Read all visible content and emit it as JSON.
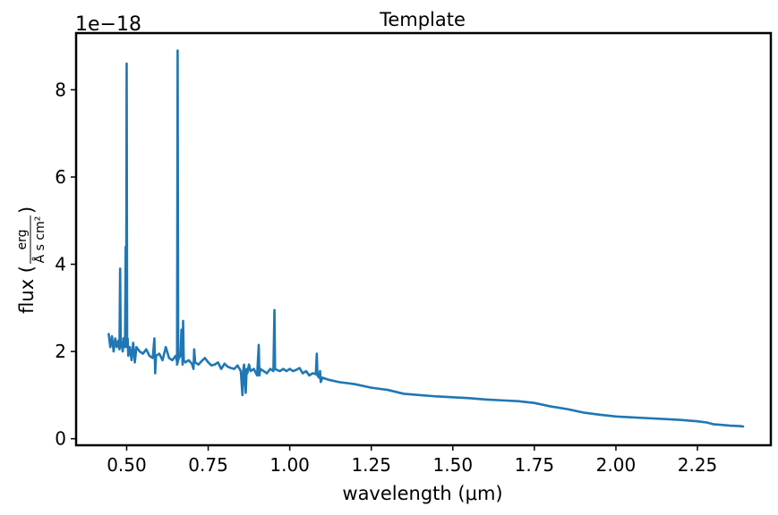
{
  "chart_data": {
    "type": "line",
    "title": "Template",
    "xlabel": "wavelength (μm)",
    "ylabel": {
      "prefix": "flux (",
      "num": "erg",
      "den": "Å s cm²",
      "suffix": ")"
    },
    "y_offset_label": "1e−18",
    "xlim": [
      0.345,
      2.475
    ],
    "ylim": [
      -0.15,
      9.3
    ],
    "xticks": [
      0.5,
      0.75,
      1.0,
      1.25,
      1.5,
      1.75,
      2.0,
      2.25
    ],
    "xtick_labels": [
      "0.50",
      "0.75",
      "1.00",
      "1.25",
      "1.50",
      "1.75",
      "2.00",
      "2.25"
    ],
    "yticks": [
      0,
      2,
      4,
      6,
      8
    ],
    "ytick_labels": [
      "0",
      "2",
      "4",
      "6",
      "8"
    ],
    "grid": false,
    "series": [
      {
        "color": "#1f77b4",
        "x": [
          0.445,
          0.45,
          0.455,
          0.46,
          0.465,
          0.47,
          0.475,
          0.478,
          0.48,
          0.482,
          0.485,
          0.488,
          0.49,
          0.495,
          0.497,
          0.4985,
          0.5,
          0.5015,
          0.503,
          0.505,
          0.51,
          0.515,
          0.52,
          0.525,
          0.53,
          0.54,
          0.55,
          0.56,
          0.57,
          0.58,
          0.585,
          0.5875,
          0.59,
          0.6,
          0.61,
          0.62,
          0.63,
          0.64,
          0.65,
          0.655,
          0.658,
          0.6563,
          0.6545,
          0.66,
          0.665,
          0.668,
          0.6716,
          0.6731,
          0.675,
          0.68,
          0.69,
          0.7,
          0.705,
          0.707,
          0.71,
          0.72,
          0.73,
          0.74,
          0.75,
          0.76,
          0.77,
          0.78,
          0.79,
          0.8,
          0.81,
          0.82,
          0.83,
          0.84,
          0.85,
          0.855,
          0.858,
          0.86,
          0.865,
          0.868,
          0.87,
          0.875,
          0.88,
          0.89,
          0.9,
          0.905,
          0.907,
          0.91,
          0.92,
          0.93,
          0.94,
          0.95,
          0.9531,
          0.955,
          0.96,
          0.97,
          0.98,
          0.99,
          1.0,
          1.01,
          1.02,
          1.03,
          1.04,
          1.05,
          1.06,
          1.07,
          1.08,
          1.083,
          1.085,
          1.09,
          1.093,
          1.095,
          1.1,
          1.12,
          1.15,
          1.2,
          1.25,
          1.3,
          1.35,
          1.4,
          1.45,
          1.5,
          1.55,
          1.6,
          1.65,
          1.7,
          1.75,
          1.8,
          1.85,
          1.9,
          1.95,
          2.0,
          2.05,
          2.1,
          2.15,
          2.2,
          2.25,
          2.28,
          2.3,
          2.32,
          2.35,
          2.38,
          2.39
        ],
        "y": [
          2.4,
          2.1,
          2.35,
          2.0,
          2.3,
          2.1,
          2.25,
          2.05,
          3.9,
          2.1,
          2.2,
          2.0,
          2.3,
          2.1,
          4.4,
          2.2,
          8.6,
          2.1,
          2.3,
          1.9,
          2.1,
          1.8,
          2.2,
          1.75,
          2.1,
          2.0,
          1.95,
          2.05,
          1.9,
          1.85,
          2.3,
          1.5,
          1.9,
          1.95,
          1.8,
          2.1,
          1.85,
          1.8,
          1.9,
          1.75,
          1.8,
          8.9,
          1.7,
          1.85,
          1.9,
          2.5,
          1.7,
          2.7,
          1.8,
          1.75,
          1.8,
          1.72,
          1.6,
          2.05,
          1.75,
          1.7,
          1.78,
          1.85,
          1.75,
          1.68,
          1.7,
          1.75,
          1.6,
          1.72,
          1.65,
          1.62,
          1.6,
          1.68,
          1.55,
          1.0,
          1.6,
          1.7,
          1.05,
          1.6,
          1.5,
          1.7,
          1.55,
          1.6,
          1.45,
          2.15,
          1.45,
          1.6,
          1.55,
          1.5,
          1.6,
          1.55,
          2.95,
          1.6,
          1.58,
          1.55,
          1.6,
          1.55,
          1.6,
          1.55,
          1.58,
          1.62,
          1.5,
          1.55,
          1.45,
          1.5,
          1.48,
          1.95,
          1.45,
          1.4,
          1.55,
          1.3,
          1.4,
          1.35,
          1.3,
          1.25,
          1.17,
          1.12,
          1.03,
          1.0,
          0.97,
          0.95,
          0.93,
          0.9,
          0.88,
          0.86,
          0.82,
          0.74,
          0.68,
          0.6,
          0.55,
          0.51,
          0.49,
          0.47,
          0.45,
          0.43,
          0.4,
          0.37,
          0.33,
          0.32,
          0.3,
          0.29,
          0.28
        ]
      }
    ]
  }
}
